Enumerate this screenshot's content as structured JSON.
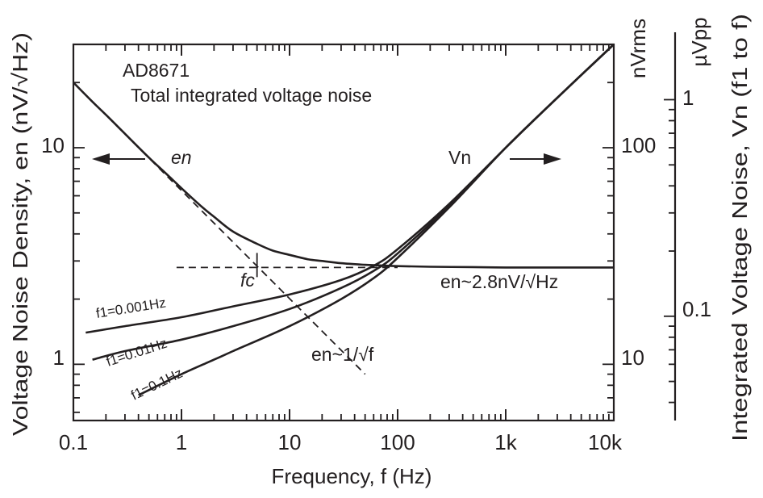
{
  "chart_data": {
    "type": "line",
    "title": "AD8671",
    "subtitle": "Total integrated voltage noise",
    "xlabel": "Frequency, f (Hz)",
    "xscale": "log",
    "xlim": [
      0.1,
      10000
    ],
    "x_tick_labels": [
      "0.1",
      "1",
      "10",
      "100",
      "1k",
      "10k"
    ],
    "ylabel_left": "Voltage Noise Density, en (nV/√Hz)",
    "ylim_left": [
      0.55,
      30
    ],
    "y_left_tick_labels": [
      "1",
      "10"
    ],
    "ylabel_right_units": "nVrms",
    "ylim_right": [
      5.5,
      300
    ],
    "y_right_tick_labels": [
      "10",
      "100"
    ],
    "ylabel_far_right": "Integrated Voltage Noise, Vn (f1 to f)",
    "y_far_right_units": "µVpp",
    "ylim_far_right": [
      0.033,
      1.8
    ],
    "y_far_right_tick_labels": [
      "0.1",
      "1"
    ],
    "series": [
      {
        "name": "en",
        "axis": "left",
        "x": [
          0.1,
          0.15,
          0.2,
          0.3,
          0.5,
          0.7,
          1,
          1.5,
          2,
          3,
          5,
          7,
          10,
          15,
          20,
          30,
          50,
          70,
          100,
          200,
          500,
          1000,
          2000,
          5000,
          10000
        ],
        "values": [
          20.0,
          16.3,
          14.2,
          11.6,
          9.0,
          7.7,
          6.5,
          5.4,
          4.8,
          4.1,
          3.6,
          3.35,
          3.2,
          3.05,
          3.0,
          2.93,
          2.88,
          2.86,
          2.84,
          2.82,
          2.81,
          2.8,
          2.8,
          2.8,
          2.8
        ]
      },
      {
        "name": "Vn f1=0.001Hz",
        "axis": "right",
        "x": [
          0.13,
          0.3,
          1,
          3,
          10,
          30,
          60,
          100,
          300,
          1000,
          3000,
          10000
        ],
        "values": [
          14.0,
          15.0,
          16.5,
          18.5,
          21.0,
          24.5,
          28.5,
          34.0,
          55.0,
          100.0,
          170.0,
          300.0
        ]
      },
      {
        "name": "Vn f1=0.01Hz",
        "axis": "right",
        "x": [
          0.15,
          0.3,
          1,
          3,
          10,
          30,
          60,
          100,
          300,
          1000,
          3000,
          10000
        ],
        "values": [
          10.5,
          11.5,
          13.0,
          15.0,
          18.0,
          22.5,
          27.0,
          32.5,
          54.0,
          100.0,
          170.0,
          300.0
        ]
      },
      {
        "name": "Vn f1=0.1Hz",
        "axis": "right",
        "x": [
          0.4,
          1,
          2,
          3,
          10,
          30,
          60,
          100,
          300,
          1000,
          3000,
          10000
        ],
        "values": [
          7.2,
          9.0,
          10.5,
          11.5,
          15.0,
          20.0,
          25.0,
          31.0,
          53.0,
          100.0,
          170.0,
          300.0
        ]
      }
    ],
    "asymptotes": [
      {
        "name": "en ~ 1/sqrt(f)",
        "x": [
          0.1,
          50
        ],
        "values": [
          20.0,
          0.9
        ]
      },
      {
        "name": "en ~ 2.8 nV/sqrt(Hz)",
        "x": [
          0.9,
          100
        ],
        "values": [
          2.8,
          2.8
        ]
      }
    ],
    "corner_marker": {
      "label": "fc",
      "x": 5,
      "value": 2.8
    },
    "annotations": {
      "en_label": "en",
      "Vn_label": "Vn",
      "en_flat": "en~2.8nV/√Hz",
      "en_slope": "en~1/√f",
      "fc": "fc",
      "f1_0001": "f1=0.001Hz",
      "f1_001": "f1=0.01Hz",
      "f1_01": "f1=0.1Hz"
    }
  }
}
